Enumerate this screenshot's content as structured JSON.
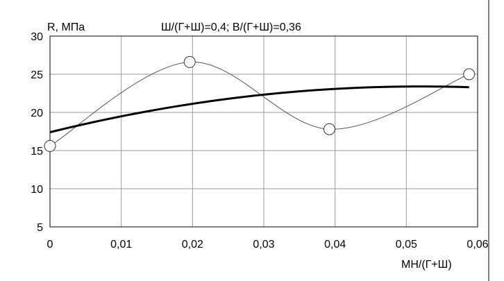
{
  "chart_data": {
    "type": "line",
    "title": "Ш/(Г+Ш)=0,4; В/(Г+Ш)=0,36",
    "xlabel": "МН/(Г+Ш)",
    "ylabel": "R, МПа",
    "xlim": [
      0,
      0.06
    ],
    "ylim": [
      5,
      30
    ],
    "x_ticks": [
      0,
      0.01,
      0.02,
      0.03,
      0.04,
      0.05,
      0.06
    ],
    "x_tick_labels": [
      "0",
      "0,01",
      "0,02",
      "0,03",
      "0,04",
      "0,05",
      "0,06"
    ],
    "y_ticks": [
      5,
      10,
      15,
      20,
      25,
      30
    ],
    "y_tick_labels": [
      "5",
      "10",
      "15",
      "20",
      "25",
      "30"
    ],
    "grid": true,
    "series": [
      {
        "style": "thin-smooth-with-markers",
        "color": "#555555",
        "x": [
          0,
          0.0196,
          0.0392,
          0.0588
        ],
        "y": [
          15.6,
          26.6,
          17.8,
          25.0
        ]
      },
      {
        "style": "thick-trend",
        "color": "#000000",
        "x": [
          0,
          0.0588
        ],
        "y": [
          17.4,
          23.2
        ]
      }
    ]
  }
}
